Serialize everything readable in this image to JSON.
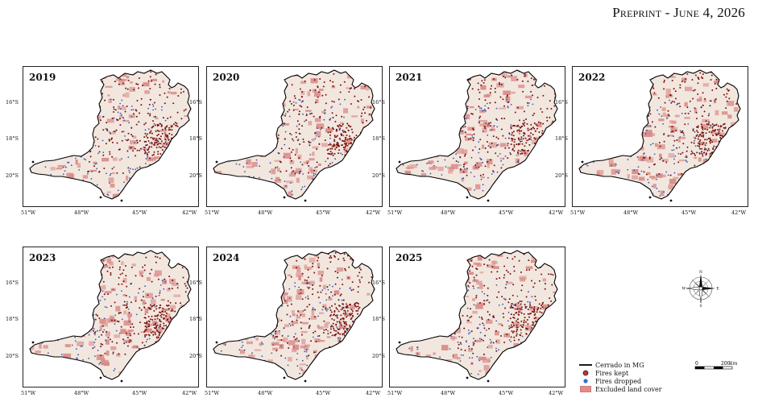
{
  "header": {
    "prefix": "Preprint",
    "separator": " - ",
    "date": "June 4, 2026"
  },
  "panels": [
    {
      "year": "2019"
    },
    {
      "year": "2020"
    },
    {
      "year": "2021"
    },
    {
      "year": "2022"
    },
    {
      "year": "2023"
    },
    {
      "year": "2024"
    },
    {
      "year": "2025"
    }
  ],
  "axes": {
    "x_ticks": [
      "51°W",
      "48°W",
      "45°W",
      "42°W"
    ],
    "y_ticks": [
      "16°S",
      "18°S",
      "20°S"
    ]
  },
  "legend": {
    "items": [
      {
        "label": "Cerrado in MG",
        "symbol": "line",
        "color": "#000000"
      },
      {
        "label": "Fires kept",
        "symbol": "dot",
        "color": "#c0392b"
      },
      {
        "label": "Fires dropped",
        "symbol": "dot",
        "color": "#2e6fd6"
      },
      {
        "label": "Excluded land cover",
        "symbol": "patch",
        "color": "#e08a8a"
      }
    ]
  },
  "scale_bar": {
    "start": "0",
    "end": "200",
    "unit": "km"
  },
  "compass": {
    "n": "N",
    "s": "S",
    "e": "E",
    "w": "W"
  },
  "colors": {
    "background_land": "#f2e7df",
    "excluded": "#d98a86",
    "fire_kept": "#7a1410",
    "fire_dropped": "#3a56b0",
    "outline": "#000000"
  }
}
